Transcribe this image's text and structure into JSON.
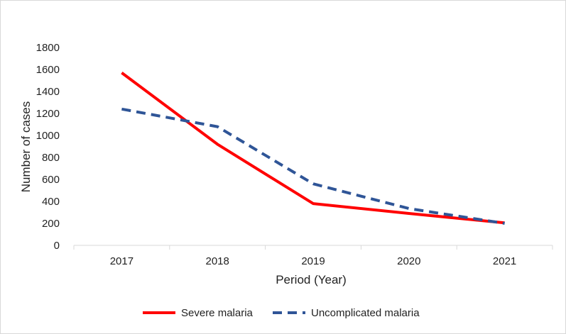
{
  "chart_data": {
    "type": "line",
    "title": "",
    "xlabel": "Period (Year)",
    "ylabel": "Number of cases",
    "categories": [
      "2017",
      "2018",
      "2019",
      "2020",
      "2021"
    ],
    "ylim": [
      0,
      1800
    ],
    "yticks": [
      0,
      200,
      400,
      600,
      800,
      1000,
      1200,
      1400,
      1600,
      1800
    ],
    "grid": false,
    "legend_position": "bottom",
    "series": [
      {
        "name": "Severe malaria",
        "values": [
          1570,
          920,
          380,
          290,
          205
        ],
        "color": "#ff0000",
        "style": "solid"
      },
      {
        "name": "Uncomplicated malaria",
        "values": [
          1240,
          1080,
          560,
          335,
          200
        ],
        "color": "#2f5597",
        "style": "dashed"
      }
    ]
  }
}
